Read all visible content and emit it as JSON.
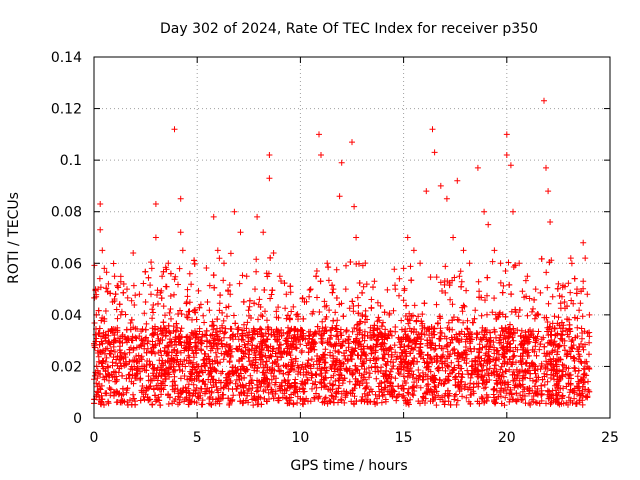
{
  "chart_data": {
    "type": "scatter",
    "title": "Day 302 of 2024, Rate Of TEC Index for receiver p350",
    "xlabel": "GPS time / hours",
    "ylabel": "ROTI / TECUs",
    "xlim": [
      0,
      25
    ],
    "ylim": [
      0,
      0.14
    ],
    "xticks": [
      0,
      5,
      10,
      15,
      20,
      25
    ],
    "xtick_labels": [
      "0",
      "5",
      "10",
      "15",
      "20",
      "25"
    ],
    "yticks": [
      0,
      0.02,
      0.04,
      0.06,
      0.08,
      0.1,
      0.12,
      0.14
    ],
    "ytick_labels": [
      "0",
      "0.02",
      "0.04",
      "0.06",
      "0.08",
      "0.1",
      "0.12",
      "0.14"
    ],
    "grid": true,
    "marker": "+",
    "series": [
      {
        "color": "#ff0000",
        "points": [
          [
            0.0,
            0.015
          ],
          [
            0.1,
            0.047
          ],
          [
            0.2,
            0.05
          ],
          [
            0.3,
            0.083
          ],
          [
            0.3,
            0.073
          ],
          [
            0.4,
            0.065
          ],
          [
            0.5,
            0.058
          ],
          [
            0.7,
            0.052
          ],
          [
            0.9,
            0.045
          ],
          [
            1.0,
            0.055
          ],
          [
            1.3,
            0.04
          ],
          [
            1.6,
            0.05
          ],
          [
            1.9,
            0.064
          ],
          [
            2.2,
            0.048
          ],
          [
            2.5,
            0.045
          ],
          [
            2.8,
            0.058
          ],
          [
            3.0,
            0.083
          ],
          [
            3.0,
            0.07
          ],
          [
            3.3,
            0.055
          ],
          [
            3.6,
            0.06
          ],
          [
            3.9,
            0.112
          ],
          [
            4.2,
            0.085
          ],
          [
            4.2,
            0.072
          ],
          [
            4.3,
            0.065
          ],
          [
            4.5,
            0.045
          ],
          [
            4.9,
            0.042
          ],
          [
            5.2,
            0.03
          ],
          [
            5.5,
            0.045
          ],
          [
            5.8,
            0.078
          ],
          [
            6.0,
            0.065
          ],
          [
            6.3,
            0.06
          ],
          [
            6.6,
            0.048
          ],
          [
            6.8,
            0.08
          ],
          [
            7.1,
            0.072
          ],
          [
            7.4,
            0.055
          ],
          [
            7.8,
            0.05
          ],
          [
            7.9,
            0.078
          ],
          [
            8.2,
            0.072
          ],
          [
            8.5,
            0.102
          ],
          [
            8.5,
            0.093
          ],
          [
            8.7,
            0.064
          ],
          [
            9.0,
            0.055
          ],
          [
            9.4,
            0.035
          ],
          [
            9.8,
            0.04
          ],
          [
            10.2,
            0.045
          ],
          [
            10.5,
            0.05
          ],
          [
            10.8,
            0.057
          ],
          [
            10.9,
            0.11
          ],
          [
            11.0,
            0.102
          ],
          [
            11.3,
            0.06
          ],
          [
            11.6,
            0.05
          ],
          [
            11.9,
            0.086
          ],
          [
            12.0,
            0.099
          ],
          [
            12.2,
            0.05
          ],
          [
            12.5,
            0.107
          ],
          [
            12.6,
            0.082
          ],
          [
            12.7,
            0.07
          ],
          [
            13.0,
            0.04
          ],
          [
            13.4,
            0.035
          ],
          [
            13.7,
            0.03
          ],
          [
            14.0,
            0.037
          ],
          [
            14.3,
            0.04
          ],
          [
            14.6,
            0.05
          ],
          [
            15.0,
            0.058
          ],
          [
            15.2,
            0.07
          ],
          [
            15.5,
            0.065
          ],
          [
            15.8,
            0.06
          ],
          [
            16.1,
            0.088
          ],
          [
            16.4,
            0.112
          ],
          [
            16.5,
            0.103
          ],
          [
            16.8,
            0.09
          ],
          [
            17.1,
            0.085
          ],
          [
            17.4,
            0.07
          ],
          [
            17.6,
            0.092
          ],
          [
            17.9,
            0.065
          ],
          [
            18.2,
            0.06
          ],
          [
            18.6,
            0.097
          ],
          [
            18.9,
            0.08
          ],
          [
            19.1,
            0.075
          ],
          [
            19.4,
            0.065
          ],
          [
            19.7,
            0.06
          ],
          [
            20.0,
            0.11
          ],
          [
            20.0,
            0.102
          ],
          [
            20.2,
            0.098
          ],
          [
            20.3,
            0.08
          ],
          [
            20.6,
            0.06
          ],
          [
            21.0,
            0.055
          ],
          [
            21.4,
            0.05
          ],
          [
            21.8,
            0.123
          ],
          [
            21.9,
            0.097
          ],
          [
            22.0,
            0.088
          ],
          [
            22.1,
            0.076
          ],
          [
            22.5,
            0.052
          ],
          [
            22.8,
            0.045
          ],
          [
            23.1,
            0.062
          ],
          [
            23.4,
            0.05
          ],
          [
            23.7,
            0.068
          ],
          [
            23.8,
            0.062
          ],
          [
            23.9,
            0.048
          ],
          [
            24.0,
            0.04
          ]
        ],
        "baseline_band": {
          "note": "dense cloud of readings",
          "y_typical": [
            0.005,
            0.035
          ]
        }
      }
    ]
  }
}
